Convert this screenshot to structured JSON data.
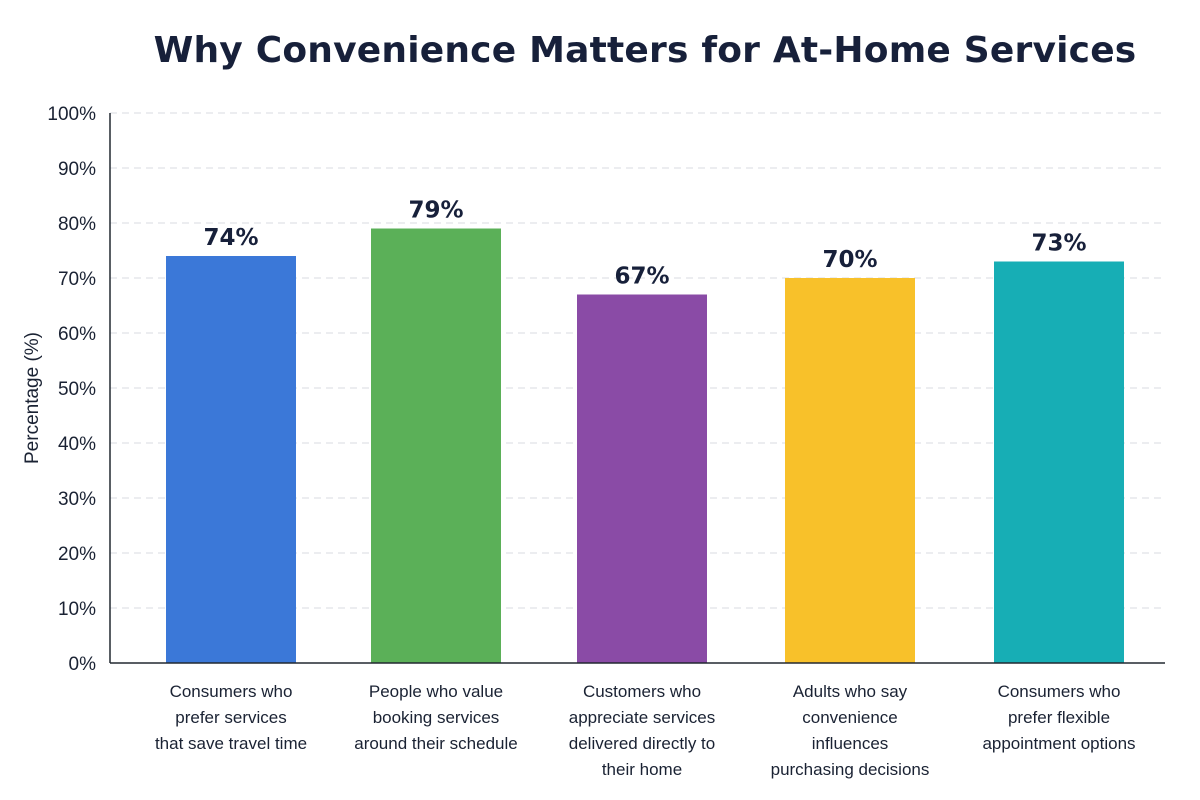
{
  "chart_data": {
    "type": "bar",
    "title": "Why Convenience Matters for At-Home Services",
    "ylabel": "Percentage (%)",
    "xlabel": "",
    "ylim": [
      0,
      100
    ],
    "y_ticks": [
      "0%",
      "10%",
      "20%",
      "30%",
      "40%",
      "50%",
      "60%",
      "70%",
      "80%",
      "90%",
      "100%"
    ],
    "grid": true,
    "categories": [
      "Consumers who prefer services that save travel time",
      "People who value booking services around their schedule",
      "Customers who appreciate services delivered directly to their home",
      "Adults who say convenience influences purchasing decisions",
      "Consumers who prefer flexible appointment options"
    ],
    "category_lines": [
      [
        "Consumers who",
        "prefer services",
        "that save travel time"
      ],
      [
        "People who value",
        "booking services",
        "around their schedule"
      ],
      [
        "Customers who",
        "appreciate services",
        "delivered directly to",
        "their home"
      ],
      [
        "Adults who say",
        "convenience",
        "influences",
        "purchasing decisions"
      ],
      [
        "Consumers who",
        "prefer flexible",
        "appointment options"
      ]
    ],
    "values": [
      74,
      79,
      67,
      70,
      73
    ],
    "value_labels": [
      "74%",
      "79%",
      "67%",
      "70%",
      "73%"
    ],
    "colors": [
      "#3b78d8",
      "#5bb058",
      "#8a4ba6",
      "#f8c12a",
      "#17aeb5"
    ]
  }
}
